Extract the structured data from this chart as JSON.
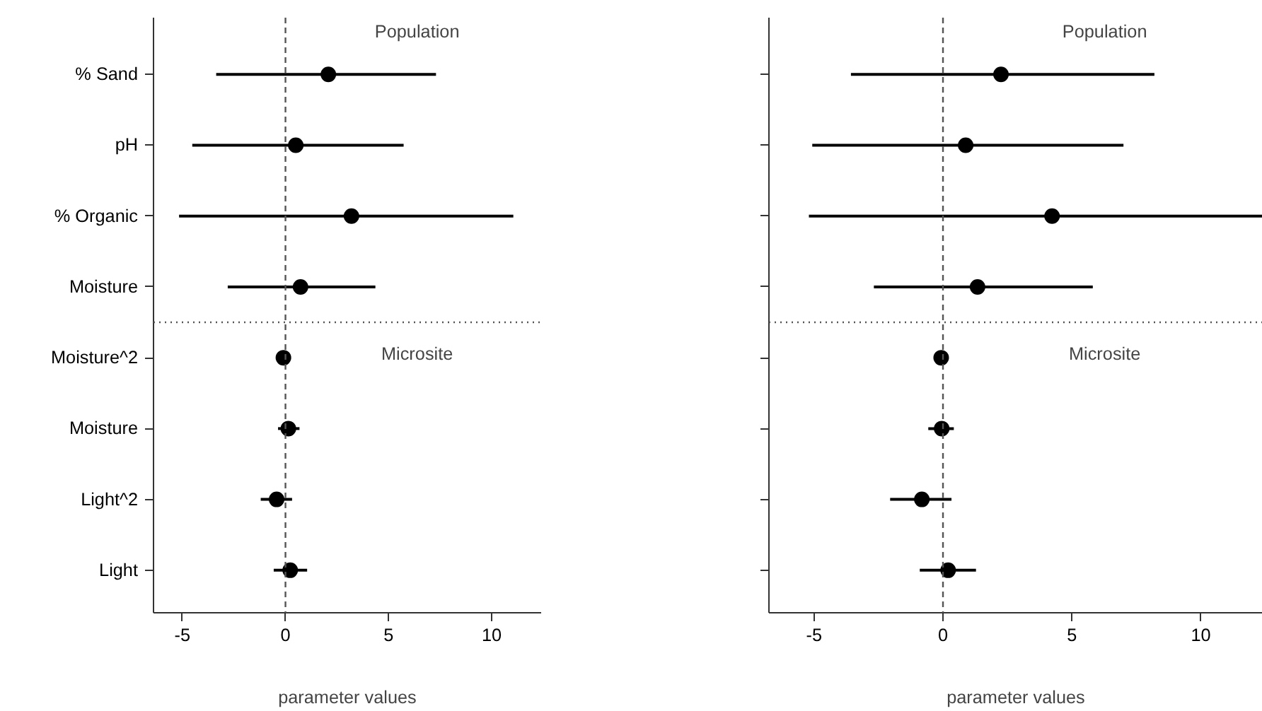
{
  "chart_data": [
    {
      "type": "scatter",
      "xlabel": "parameter values",
      "orientation": "horizontal",
      "categories": [
        "% Sand",
        "pH",
        "% Organic",
        "Moisture",
        "Moisture^2",
        "Moisture",
        "Light^2",
        "Light"
      ],
      "values": [
        2.08,
        0.5,
        3.2,
        0.73,
        -0.1,
        0.14,
        -0.43,
        0.23
      ],
      "errors": [
        [
          -3.36,
          7.3
        ],
        [
          -4.52,
          5.73
        ],
        [
          -5.16,
          11.05
        ],
        [
          -2.8,
          4.36
        ],
        null,
        [
          -0.36,
          0.68
        ],
        [
          -1.2,
          0.32
        ],
        [
          -0.57,
          1.05
        ]
      ],
      "color": "#000000",
      "marker": "circle",
      "grid": false,
      "xlim": [
        -6.4,
        12.4
      ],
      "xticks": [
        -5,
        0,
        5,
        10
      ],
      "ref_lines": [
        {
          "axis": "x",
          "value": 0,
          "line_style": "dashed",
          "color": "#555555"
        }
      ],
      "annotations": [
        "Population",
        "Microsite"
      ]
    },
    {
      "type": "scatter",
      "xlabel": "parameter values",
      "orientation": "horizontal",
      "categories": [
        null,
        null,
        null,
        null,
        null,
        null,
        null,
        null
      ],
      "values": [
        2.25,
        0.88,
        4.23,
        1.34,
        -0.07,
        -0.05,
        -0.82,
        0.2
      ],
      "errors": [
        [
          -3.57,
          8.2
        ],
        [
          -5.07,
          7.0
        ],
        [
          -5.2,
          12.4
        ],
        [
          -2.68,
          5.81
        ],
        null,
        [
          -0.57,
          0.42
        ],
        [
          -2.05,
          0.33
        ],
        [
          -0.9,
          1.28
        ]
      ],
      "color": "#000000",
      "marker": "circle",
      "grid": false,
      "xlim": [
        -6.75,
        12.4
      ],
      "xticks": [
        -5,
        0,
        5,
        10
      ],
      "ref_lines": [
        {
          "axis": "x",
          "value": 0,
          "line_style": "dashed",
          "color": "#555555"
        }
      ],
      "annotations": [
        "Population",
        "Microsite"
      ]
    }
  ]
}
